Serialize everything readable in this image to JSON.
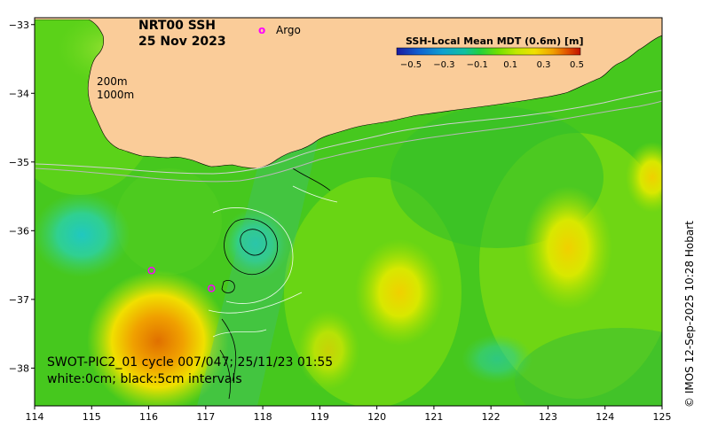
{
  "title": {
    "product": "NRT00 SSH",
    "date": "25 Nov 2023"
  },
  "legend": {
    "argo_marker": "o",
    "argo_label": "Argo",
    "isobath_200": "200m",
    "isobath_1000": "1000m"
  },
  "colorbar": {
    "title": "SSH-Local Mean MDT (0.6m) [m]",
    "ticks": [
      "−0.5",
      "−0.3",
      "−0.1",
      "0.1",
      "0.3",
      "0.5"
    ],
    "colors": [
      "#1a1aa0",
      "#1060d0",
      "#10a0d0",
      "#10c0a0",
      "#20d040",
      "#70e000",
      "#c0e800",
      "#f0e000",
      "#f0a000",
      "#e05000",
      "#c01000"
    ]
  },
  "swath": {
    "line1": "SWOT-PIC2_01 cycle 007/047; 25/11/23 01:55",
    "line2": "white:0cm; black:5cm intervals"
  },
  "axes": {
    "x_ticks": [
      "114",
      "115",
      "116",
      "117",
      "118",
      "119",
      "120",
      "121",
      "122",
      "123",
      "124",
      "125"
    ],
    "y_ticks": [
      "−33",
      "−34",
      "−35",
      "−36",
      "−37",
      "−38"
    ]
  },
  "credit": "© IMOS 12-Sep-2025 10:28 Hobart",
  "argo_floats": [
    {
      "lon": 116.05,
      "lat": -36.58
    },
    {
      "lon": 117.1,
      "lat": -36.84
    }
  ]
}
